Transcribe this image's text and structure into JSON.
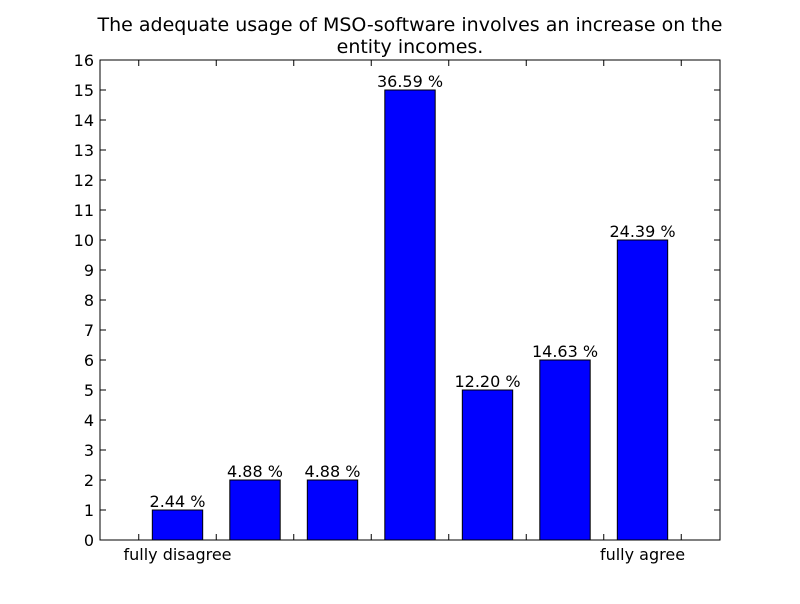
{
  "chart_data": {
    "type": "bar",
    "title_lines": [
      "The adequate usage of MSO-software involves an increase on the",
      "entity incomes."
    ],
    "categories": [
      "fully disagree",
      "",
      "",
      "",
      "",
      "",
      "fully agree"
    ],
    "values": [
      1,
      2,
      2,
      15,
      5,
      6,
      10
    ],
    "value_labels": [
      "2.44 %",
      "4.88 %",
      "4.88 %",
      "36.59 %",
      "12.20 %",
      "14.63 %",
      "24.39 %"
    ],
    "ylim": [
      0,
      16
    ],
    "yticks": [
      0,
      1,
      2,
      3,
      4,
      5,
      6,
      7,
      8,
      9,
      10,
      11,
      12,
      13,
      14,
      15,
      16
    ],
    "xlim": [
      -0.5,
      7.5
    ],
    "bar_color": "#0000ff",
    "grid": false,
    "xlabel": "",
    "ylabel": ""
  }
}
